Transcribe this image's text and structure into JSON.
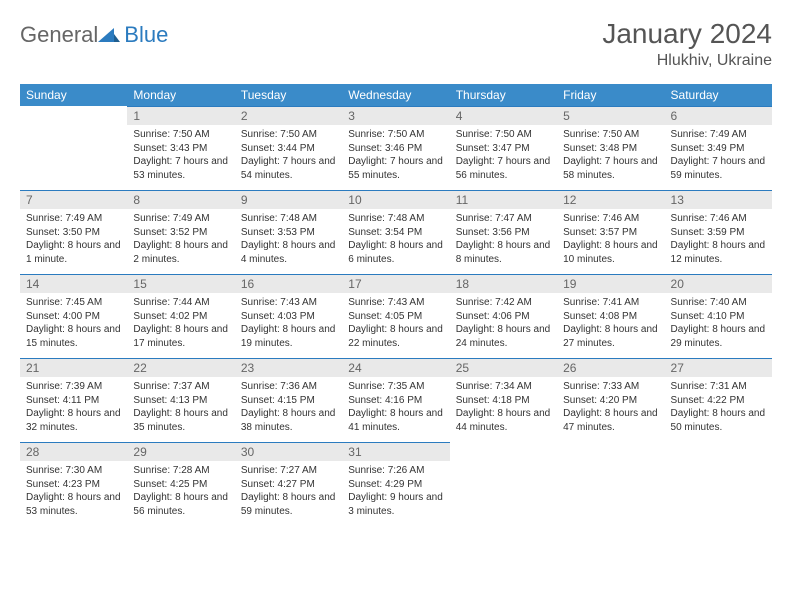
{
  "brand": {
    "part1": "General",
    "part2": "Blue"
  },
  "title": "January 2024",
  "location": "Hlukhiv, Ukraine",
  "colors": {
    "header_bg": "#3a8bc9",
    "header_text": "#ffffff",
    "daynum_bg": "#e9e9e9",
    "daynum_text": "#666666",
    "rule": "#2b7bbf",
    "body_text": "#333333",
    "title_text": "#555555",
    "page_bg": "#ffffff",
    "logo_accent": "#2b7bbf"
  },
  "typography": {
    "title_fontsize": 28,
    "location_fontsize": 16,
    "dayhead_fontsize": 12,
    "daynum_fontsize": 12,
    "body_fontsize": 10
  },
  "weekdays": [
    "Sunday",
    "Monday",
    "Tuesday",
    "Wednesday",
    "Thursday",
    "Friday",
    "Saturday"
  ],
  "weeks": [
    [
      null,
      {
        "n": "1",
        "sunrise": "7:50 AM",
        "sunset": "3:43 PM",
        "daylight": "7 hours and 53 minutes."
      },
      {
        "n": "2",
        "sunrise": "7:50 AM",
        "sunset": "3:44 PM",
        "daylight": "7 hours and 54 minutes."
      },
      {
        "n": "3",
        "sunrise": "7:50 AM",
        "sunset": "3:46 PM",
        "daylight": "7 hours and 55 minutes."
      },
      {
        "n": "4",
        "sunrise": "7:50 AM",
        "sunset": "3:47 PM",
        "daylight": "7 hours and 56 minutes."
      },
      {
        "n": "5",
        "sunrise": "7:50 AM",
        "sunset": "3:48 PM",
        "daylight": "7 hours and 58 minutes."
      },
      {
        "n": "6",
        "sunrise": "7:49 AM",
        "sunset": "3:49 PM",
        "daylight": "7 hours and 59 minutes."
      }
    ],
    [
      {
        "n": "7",
        "sunrise": "7:49 AM",
        "sunset": "3:50 PM",
        "daylight": "8 hours and 1 minute."
      },
      {
        "n": "8",
        "sunrise": "7:49 AM",
        "sunset": "3:52 PM",
        "daylight": "8 hours and 2 minutes."
      },
      {
        "n": "9",
        "sunrise": "7:48 AM",
        "sunset": "3:53 PM",
        "daylight": "8 hours and 4 minutes."
      },
      {
        "n": "10",
        "sunrise": "7:48 AM",
        "sunset": "3:54 PM",
        "daylight": "8 hours and 6 minutes."
      },
      {
        "n": "11",
        "sunrise": "7:47 AM",
        "sunset": "3:56 PM",
        "daylight": "8 hours and 8 minutes."
      },
      {
        "n": "12",
        "sunrise": "7:46 AM",
        "sunset": "3:57 PM",
        "daylight": "8 hours and 10 minutes."
      },
      {
        "n": "13",
        "sunrise": "7:46 AM",
        "sunset": "3:59 PM",
        "daylight": "8 hours and 12 minutes."
      }
    ],
    [
      {
        "n": "14",
        "sunrise": "7:45 AM",
        "sunset": "4:00 PM",
        "daylight": "8 hours and 15 minutes."
      },
      {
        "n": "15",
        "sunrise": "7:44 AM",
        "sunset": "4:02 PM",
        "daylight": "8 hours and 17 minutes."
      },
      {
        "n": "16",
        "sunrise": "7:43 AM",
        "sunset": "4:03 PM",
        "daylight": "8 hours and 19 minutes."
      },
      {
        "n": "17",
        "sunrise": "7:43 AM",
        "sunset": "4:05 PM",
        "daylight": "8 hours and 22 minutes."
      },
      {
        "n": "18",
        "sunrise": "7:42 AM",
        "sunset": "4:06 PM",
        "daylight": "8 hours and 24 minutes."
      },
      {
        "n": "19",
        "sunrise": "7:41 AM",
        "sunset": "4:08 PM",
        "daylight": "8 hours and 27 minutes."
      },
      {
        "n": "20",
        "sunrise": "7:40 AM",
        "sunset": "4:10 PM",
        "daylight": "8 hours and 29 minutes."
      }
    ],
    [
      {
        "n": "21",
        "sunrise": "7:39 AM",
        "sunset": "4:11 PM",
        "daylight": "8 hours and 32 minutes."
      },
      {
        "n": "22",
        "sunrise": "7:37 AM",
        "sunset": "4:13 PM",
        "daylight": "8 hours and 35 minutes."
      },
      {
        "n": "23",
        "sunrise": "7:36 AM",
        "sunset": "4:15 PM",
        "daylight": "8 hours and 38 minutes."
      },
      {
        "n": "24",
        "sunrise": "7:35 AM",
        "sunset": "4:16 PM",
        "daylight": "8 hours and 41 minutes."
      },
      {
        "n": "25",
        "sunrise": "7:34 AM",
        "sunset": "4:18 PM",
        "daylight": "8 hours and 44 minutes."
      },
      {
        "n": "26",
        "sunrise": "7:33 AM",
        "sunset": "4:20 PM",
        "daylight": "8 hours and 47 minutes."
      },
      {
        "n": "27",
        "sunrise": "7:31 AM",
        "sunset": "4:22 PM",
        "daylight": "8 hours and 50 minutes."
      }
    ],
    [
      {
        "n": "28",
        "sunrise": "7:30 AM",
        "sunset": "4:23 PM",
        "daylight": "8 hours and 53 minutes."
      },
      {
        "n": "29",
        "sunrise": "7:28 AM",
        "sunset": "4:25 PM",
        "daylight": "8 hours and 56 minutes."
      },
      {
        "n": "30",
        "sunrise": "7:27 AM",
        "sunset": "4:27 PM",
        "daylight": "8 hours and 59 minutes."
      },
      {
        "n": "31",
        "sunrise": "7:26 AM",
        "sunset": "4:29 PM",
        "daylight": "9 hours and 3 minutes."
      },
      null,
      null,
      null
    ]
  ]
}
